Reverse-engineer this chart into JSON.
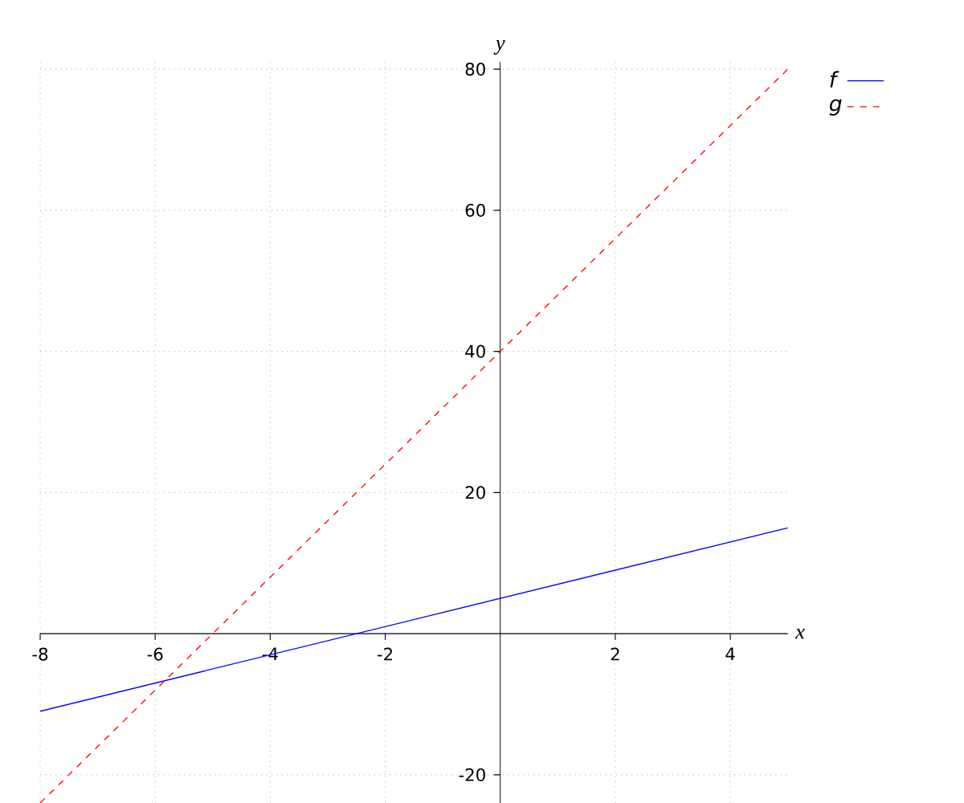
{
  "chart_data": {
    "type": "line",
    "xlabel": "x",
    "ylabel": "y",
    "xlim": [
      -8,
      5
    ],
    "ylim": [
      -24,
      81
    ],
    "xticks": [
      -8,
      -6,
      -4,
      -2,
      2,
      4
    ],
    "yticks": [
      -20,
      20,
      40,
      60,
      80
    ],
    "grid": true,
    "legend": "top right",
    "marker": "none",
    "x": [
      -8,
      5
    ],
    "series": [
      {
        "name": "f",
        "color": "#0000ff",
        "line_style": "solid",
        "values": [
          -11,
          15
        ]
      },
      {
        "name": "g",
        "color": "#ff0000",
        "line_style": "dashed",
        "values": [
          -24,
          80
        ]
      }
    ]
  }
}
